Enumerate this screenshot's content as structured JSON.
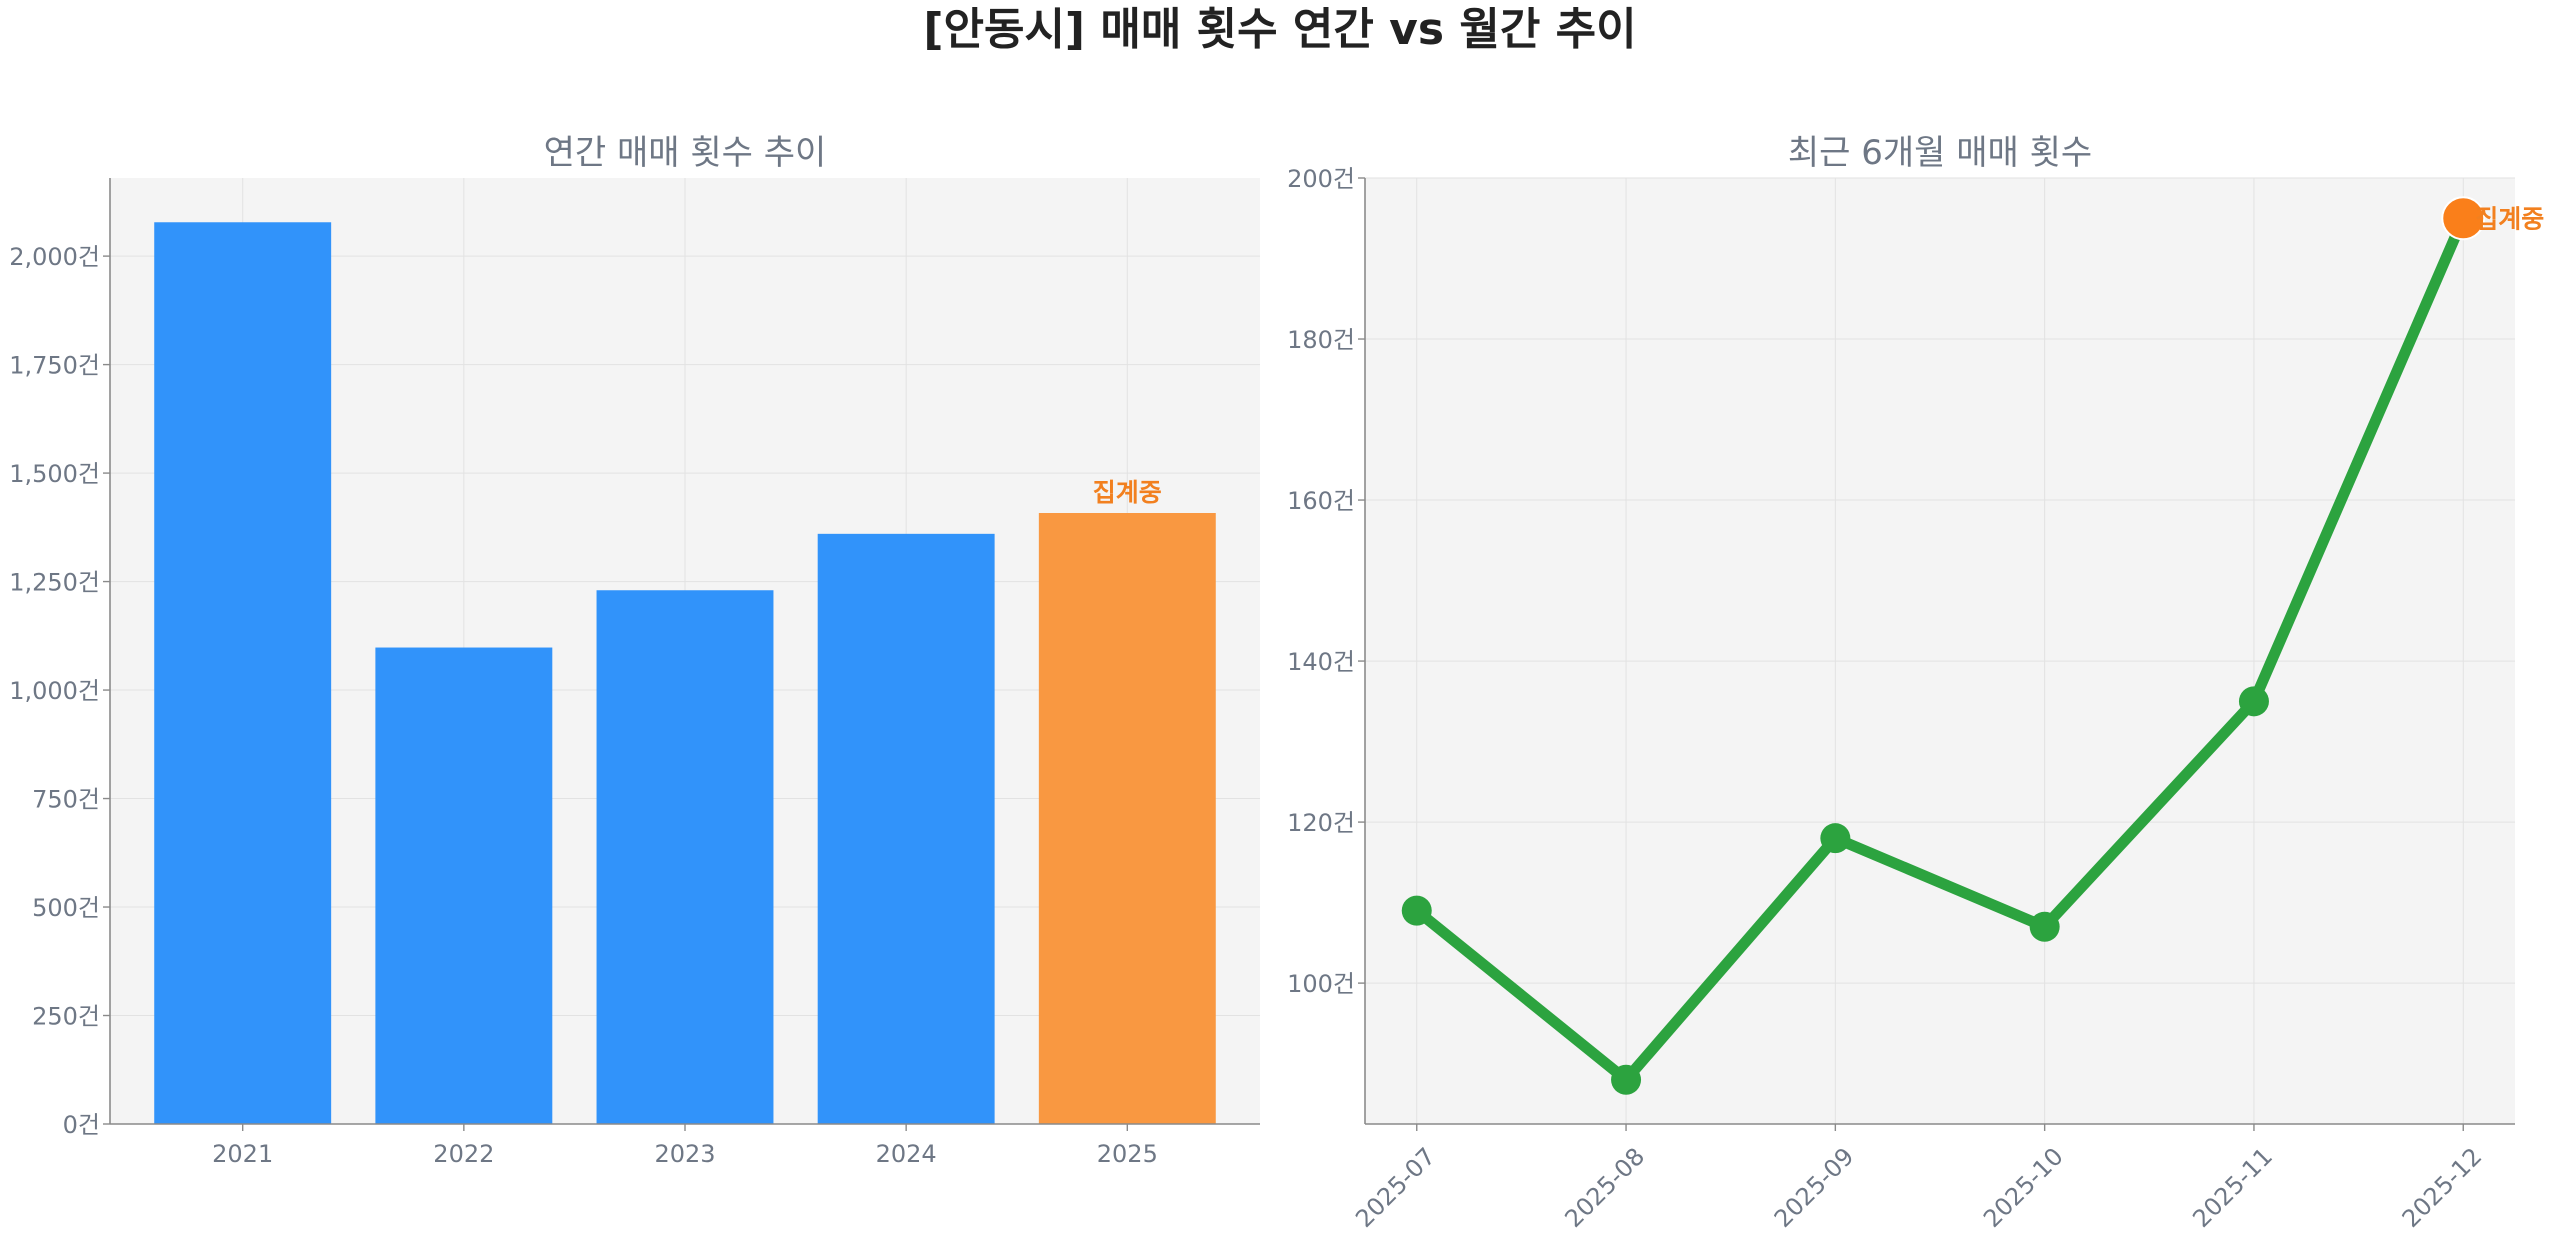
{
  "suptitle": "[안동시] 매매 횟수 연간 vs 월간 추이",
  "chart_data": [
    {
      "type": "bar",
      "title": "연간 매매 횟수 추이",
      "xlabel": "",
      "ylabel": "",
      "categories": [
        "2021",
        "2022",
        "2023",
        "2024",
        "2025"
      ],
      "values": [
        2078,
        1098,
        1230,
        1360,
        1408
      ],
      "bar_colors": [
        "#3193fa",
        "#3193fa",
        "#3193fa",
        "#3193fa",
        "#f99841"
      ],
      "annotation": {
        "category": "2025",
        "text": "집계중",
        "color": "#f2801f"
      },
      "ylim": [
        0,
        2180
      ],
      "yticks": [
        0,
        250,
        500,
        750,
        1000,
        1250,
        1500,
        1750,
        2000
      ],
      "tick_unit": "건",
      "grid": true
    },
    {
      "type": "line",
      "title": "최근 6개월 매매 횟수",
      "xlabel": "",
      "ylabel": "",
      "x": [
        "2025-07",
        "2025-08",
        "2025-09",
        "2025-10",
        "2025-11",
        "2025-12"
      ],
      "series": [
        {
          "values": [
            109,
            88,
            118,
            107,
            135,
            195
          ],
          "color": "#2ca33f"
        }
      ],
      "highlight": {
        "x": "2025-12",
        "value": 195,
        "text": "집계중",
        "color": "#fa7f1a"
      },
      "ylim": [
        82.5,
        200
      ],
      "yticks": [
        100,
        120,
        140,
        160,
        180,
        200
      ],
      "tick_unit": "건",
      "grid": true
    }
  ]
}
